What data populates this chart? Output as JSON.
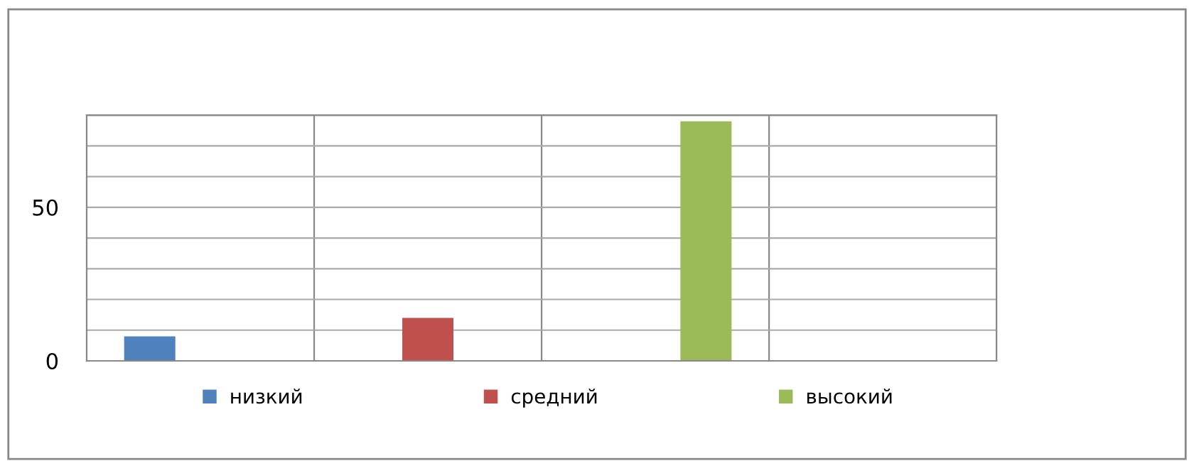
{
  "chart_data": {
    "type": "bar",
    "categories": [
      null,
      null,
      null,
      null
    ],
    "series": [
      {
        "name": "низкий",
        "color": "#4f81bd",
        "values": [
          8,
          null,
          null,
          null
        ]
      },
      {
        "name": "средний",
        "color": "#c0504d",
        "values": [
          null,
          14,
          null,
          null
        ]
      },
      {
        "name": "высокий",
        "color": "#9bbb59",
        "values": [
          null,
          null,
          78,
          null
        ]
      }
    ],
    "ylim": [
      0,
      80
    ],
    "yticks": [
      0,
      {
        "value": 10,
        "label": null
      },
      {
        "value": 20,
        "label": null
      },
      {
        "value": 30,
        "label": null
      },
      {
        "value": 40,
        "label": null
      },
      50,
      {
        "value": 60,
        "label": null
      },
      {
        "value": 70,
        "label": null
      },
      {
        "value": 80,
        "label": null
      }
    ],
    "grid": true,
    "legend": "bottom",
    "tick_labels": "y"
  }
}
